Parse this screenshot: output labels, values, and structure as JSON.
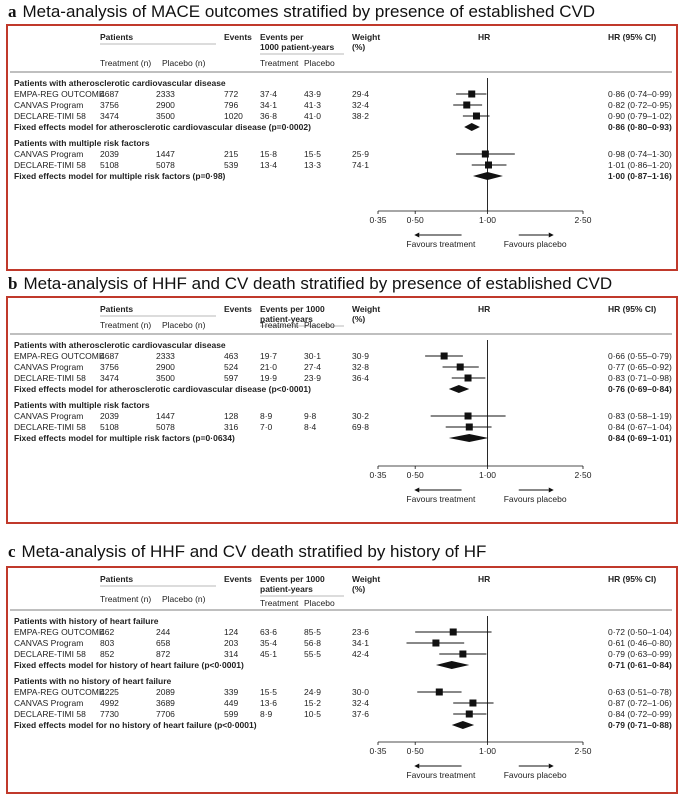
{
  "header_labels": {
    "patients": "Patients",
    "events": "Events",
    "events_per_1000_a": "Events per\n1000 patient-years",
    "events_per_1000_bc": "Events per 1000\npatient-years",
    "weight": "Weight\n(%)",
    "hr": "HR",
    "hr_ci": "HR (95% CI)",
    "treatment_n": "Treatment (n)",
    "placebo_n": "Placebo (n)",
    "treatment": "Treatment",
    "placebo": "Placebo",
    "favours_treatment": "Favours treatment",
    "favours_placebo": "Favours placebo"
  },
  "chart_data": [
    {
      "type": "forest",
      "letter": "a",
      "title": "Meta-analysis of MACE outcomes stratified by presence of established CVD",
      "x_ticks": [
        "0·35",
        "0·50",
        "1·00",
        "2·50"
      ],
      "x_tick_values": [
        0.35,
        0.5,
        1.0,
        2.5
      ],
      "xlim": [
        0.35,
        2.5
      ],
      "reference_line": 1.0,
      "groups": [
        {
          "label": "Patients with atherosclerotic cardiovascular disease",
          "rows": [
            {
              "study": "EMPA-REG OUTCOME",
              "treatment_n": "4687",
              "placebo_n": "2333",
              "events": "772",
              "rate_treatment": "37·4",
              "rate_placebo": "43·9",
              "weight": "29·4",
              "hr": 0.86,
              "lo": 0.74,
              "hi": 0.99,
              "hr_text": "0·86 (0·74–0·99)"
            },
            {
              "study": "CANVAS Program",
              "treatment_n": "3756",
              "placebo_n": "2900",
              "events": "796",
              "rate_treatment": "34·1",
              "rate_placebo": "41·3",
              "weight": "32·4",
              "hr": 0.82,
              "lo": 0.72,
              "hi": 0.95,
              "hr_text": "0·82 (0·72–0·95)"
            },
            {
              "study": "DECLARE-TIMI 58",
              "treatment_n": "3474",
              "placebo_n": "3500",
              "events": "1020",
              "rate_treatment": "36·8",
              "rate_placebo": "41·0",
              "weight": "38·2",
              "hr": 0.9,
              "lo": 0.79,
              "hi": 1.02,
              "hr_text": "0·90 (0·79–1·02)"
            }
          ],
          "summary": {
            "label": "Fixed effects model for atherosclerotic cardiovascular disease (p=0·0002)",
            "hr": 0.86,
            "lo": 0.8,
            "hi": 0.93,
            "hr_text": "0·86 (0·80–0·93)"
          }
        },
        {
          "label": "Patients with multiple risk factors",
          "rows": [
            {
              "study": "CANVAS Program",
              "treatment_n": "2039",
              "placebo_n": "1447",
              "events": "215",
              "rate_treatment": "15·8",
              "rate_placebo": "15·5",
              "weight": "25·9",
              "hr": 0.98,
              "lo": 0.74,
              "hi": 1.3,
              "hr_text": "0·98 (0·74–1·30)"
            },
            {
              "study": "DECLARE-TIMI 58",
              "treatment_n": "5108",
              "placebo_n": "5078",
              "events": "539",
              "rate_treatment": "13·4",
              "rate_placebo": "13·3",
              "weight": "74·1",
              "hr": 1.01,
              "lo": 0.86,
              "hi": 1.2,
              "hr_text": "1·01 (0·86–1·20)"
            }
          ],
          "summary": {
            "label": "Fixed effects model for multiple risk factors (p=0·98)",
            "hr": 1.0,
            "lo": 0.87,
            "hi": 1.16,
            "hr_text": "1·00 (0·87–1·16)"
          }
        }
      ]
    },
    {
      "type": "forest",
      "letter": "b",
      "title": "Meta-analysis of HHF and CV death stratified by presence of established CVD",
      "x_ticks": [
        "0·35",
        "0·50",
        "1·00",
        "2·50"
      ],
      "x_tick_values": [
        0.35,
        0.5,
        1.0,
        2.5
      ],
      "xlim": [
        0.35,
        2.5
      ],
      "reference_line": 1.0,
      "groups": [
        {
          "label": "Patients with atherosclerotic cardiovascular disease",
          "rows": [
            {
              "study": "EMPA-REG OUTCOME",
              "treatment_n": "4687",
              "placebo_n": "2333",
              "events": "463",
              "rate_treatment": "19·7",
              "rate_placebo": "30·1",
              "weight": "30·9",
              "hr": 0.66,
              "lo": 0.55,
              "hi": 0.79,
              "hr_text": "0·66 (0·55–0·79)"
            },
            {
              "study": "CANVAS Program",
              "treatment_n": "3756",
              "placebo_n": "2900",
              "events": "524",
              "rate_treatment": "21·0",
              "rate_placebo": "27·4",
              "weight": "32·8",
              "hr": 0.77,
              "lo": 0.65,
              "hi": 0.92,
              "hr_text": "0·77 (0·65–0·92)"
            },
            {
              "study": "DECLARE-TIMI 58",
              "treatment_n": "3474",
              "placebo_n": "3500",
              "events": "597",
              "rate_treatment": "19·9",
              "rate_placebo": "23·9",
              "weight": "36·4",
              "hr": 0.83,
              "lo": 0.71,
              "hi": 0.98,
              "hr_text": "0·83 (0·71–0·98)"
            }
          ],
          "summary": {
            "label": "Fixed effects model for atherosclerotic cardiovascular disease (p<0·0001)",
            "hr": 0.76,
            "lo": 0.69,
            "hi": 0.84,
            "hr_text": "0·76 (0·69–0·84)"
          }
        },
        {
          "label": "Patients with multiple risk factors",
          "rows": [
            {
              "study": "CANVAS Program",
              "treatment_n": "2039",
              "placebo_n": "1447",
              "events": "128",
              "rate_treatment": "8·9",
              "rate_placebo": "9·8",
              "weight": "30·2",
              "hr": 0.83,
              "lo": 0.58,
              "hi": 1.19,
              "hr_text": "0·83 (0·58–1·19)"
            },
            {
              "study": "DECLARE-TIMI 58",
              "treatment_n": "5108",
              "placebo_n": "5078",
              "events": "316",
              "rate_treatment": "7·0",
              "rate_placebo": "8·4",
              "weight": "69·8",
              "hr": 0.84,
              "lo": 0.67,
              "hi": 1.04,
              "hr_text": "0·84 (0·67–1·04)"
            }
          ],
          "summary": {
            "label": "Fixed effects model for multiple risk factors (p=0·0634)",
            "hr": 0.84,
            "lo": 0.69,
            "hi": 1.01,
            "hr_text": "0·84 (0·69–1·01)"
          }
        }
      ]
    },
    {
      "type": "forest",
      "letter": "c",
      "title": "Meta-analysis of HHF and CV death stratified by history of HF",
      "x_ticks": [
        "0·35",
        "0·50",
        "1·00",
        "2·50"
      ],
      "x_tick_values": [
        0.35,
        0.5,
        1.0,
        2.5
      ],
      "xlim": [
        0.35,
        2.5
      ],
      "reference_line": 1.0,
      "groups": [
        {
          "label": "Patients with history of heart failure",
          "rows": [
            {
              "study": "EMPA-REG OUTCOME",
              "treatment_n": "462",
              "placebo_n": "244",
              "events": "124",
              "rate_treatment": "63·6",
              "rate_placebo": "85·5",
              "weight": "23·6",
              "hr": 0.72,
              "lo": 0.5,
              "hi": 1.04,
              "hr_text": "0·72 (0·50–1·04)"
            },
            {
              "study": "CANVAS Program",
              "treatment_n": "803",
              "placebo_n": "658",
              "events": "203",
              "rate_treatment": "35·4",
              "rate_placebo": "56·8",
              "weight": "34·1",
              "hr": 0.61,
              "lo": 0.46,
              "hi": 0.8,
              "hr_text": "0·61 (0·46–0·80)"
            },
            {
              "study": "DECLARE-TIMI 58",
              "treatment_n": "852",
              "placebo_n": "872",
              "events": "314",
              "rate_treatment": "45·1",
              "rate_placebo": "55·5",
              "weight": "42·4",
              "hr": 0.79,
              "lo": 0.63,
              "hi": 0.99,
              "hr_text": "0·79 (0·63–0·99)"
            }
          ],
          "summary": {
            "label": "Fixed effects model for history of heart failure (p<0·0001)",
            "hr": 0.71,
            "lo": 0.61,
            "hi": 0.84,
            "hr_text": "0·71 (0·61–0·84)"
          }
        },
        {
          "label": "Patients with no history of heart failure",
          "rows": [
            {
              "study": "EMPA-REG OUTCOME",
              "treatment_n": "4225",
              "placebo_n": "2089",
              "events": "339",
              "rate_treatment": "15·5",
              "rate_placebo": "24·9",
              "weight": "30·0",
              "hr": 0.63,
              "lo": 0.51,
              "hi": 0.78,
              "hr_text": "0·63 (0·51–0·78)"
            },
            {
              "study": "CANVAS Program",
              "treatment_n": "4992",
              "placebo_n": "3689",
              "events": "449",
              "rate_treatment": "13·6",
              "rate_placebo": "15·2",
              "weight": "32·4",
              "hr": 0.87,
              "lo": 0.72,
              "hi": 1.06,
              "hr_text": "0·87 (0·72–1·06)"
            },
            {
              "study": "DECLARE-TIMI 58",
              "treatment_n": "7730",
              "placebo_n": "7706",
              "events": "599",
              "rate_treatment": "8·9",
              "rate_placebo": "10·5",
              "weight": "37·6",
              "hr": 0.84,
              "lo": 0.72,
              "hi": 0.99,
              "hr_text": "0·84 (0·72–0·99)"
            }
          ],
          "summary": {
            "label": "Fixed effects model for no history of heart failure (p<0·0001)",
            "hr": 0.79,
            "lo": 0.71,
            "hi": 0.88,
            "hr_text": "0·79 (0·71–0·88)"
          }
        }
      ]
    }
  ]
}
